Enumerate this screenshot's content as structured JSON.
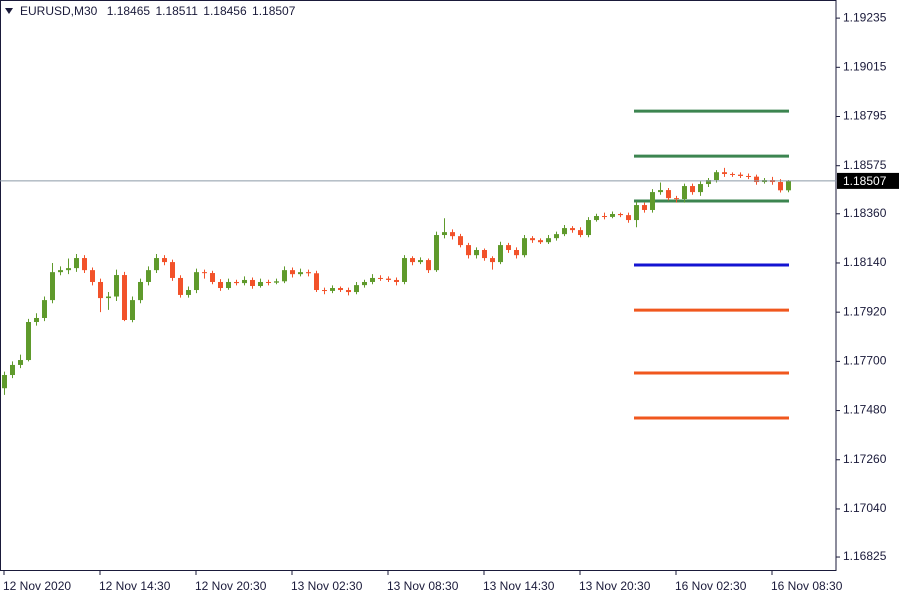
{
  "chart_data": {
    "type": "candlestick",
    "symbol": "EURUSD,M30",
    "categories": [
      "12 Nov 2020",
      null,
      null,
      null,
      null,
      null,
      null,
      null,
      null,
      null,
      null,
      null,
      "12 Nov 14:30",
      null,
      null,
      null,
      null,
      null,
      null,
      null,
      null,
      null,
      null,
      null,
      "12 Nov 20:30",
      null,
      null,
      null,
      null,
      null,
      null,
      null,
      null,
      null,
      null,
      null,
      "13 Nov 02:30",
      null,
      null,
      null,
      null,
      null,
      null,
      null,
      null,
      null,
      null,
      null,
      "13 Nov 08:30",
      null,
      null,
      null,
      null,
      null,
      null,
      null,
      null,
      null,
      null,
      null,
      "13 Nov 14:30",
      null,
      null,
      null,
      null,
      null,
      null,
      null,
      null,
      null,
      null,
      null,
      "13 Nov 20:30",
      null,
      null,
      null,
      null,
      null,
      null,
      null,
      null,
      null,
      null,
      null,
      "16 Nov 02:30",
      null,
      null,
      null,
      null,
      null,
      null,
      null,
      null,
      null,
      null,
      null,
      "16 Nov 08:30",
      null,
      null
    ],
    "open": [
      1.1758,
      1.17639,
      1.17684,
      1.17706,
      1.17876,
      1.17894,
      1.17974,
      1.18099,
      1.18108,
      1.18117,
      1.18162,
      1.18108,
      1.18055,
      1.17983,
      1.1799,
      1.18086,
      1.17885,
      1.17974,
      1.18055,
      1.18108,
      1.18162,
      1.18144,
      1.18073,
      1.17997,
      1.18019,
      1.18099,
      1.18095,
      1.18055,
      1.18028,
      1.18055,
      1.1805,
      1.18064,
      1.18037,
      1.18055,
      1.18052,
      1.18058,
      1.18108,
      1.1809,
      1.18099,
      1.18094,
      1.18019,
      1.18015,
      1.18028,
      1.18019,
      1.1801,
      1.18041,
      1.18055,
      1.18073,
      1.1807,
      1.18064,
      1.18055,
      1.18162,
      1.18144,
      1.18153,
      1.18108,
      1.18265,
      1.18278,
      1.1826,
      1.1822,
      1.18175,
      1.18198,
      1.18162,
      1.18144,
      1.1822,
      1.18198,
      1.18175,
      1.18251,
      1.18242,
      1.18233,
      1.18251,
      1.18269,
      1.18296,
      1.18287,
      1.18265,
      1.18332,
      1.1835,
      1.18346,
      1.18359,
      1.18354,
      1.18332,
      1.18399,
      1.18377,
      1.18457,
      1.18466,
      1.1843,
      1.18426,
      1.18484,
      1.18457,
      1.18493,
      1.18511,
      1.18546,
      1.18538,
      1.18535,
      1.18529,
      1.18526,
      1.18502,
      1.18511,
      1.18502,
      1.18465
    ],
    "high": [
      1.17654,
      1.177,
      1.1773,
      1.1789,
      1.17915,
      1.1799,
      1.1814,
      1.18125,
      1.1816,
      1.1818,
      1.18175,
      1.1812,
      1.1807,
      1.1801,
      1.1811,
      1.181,
      1.1799,
      1.1807,
      1.18125,
      1.1818,
      1.18175,
      1.18155,
      1.18085,
      1.18035,
      1.18115,
      1.1811,
      1.18105,
      1.18068,
      1.1807,
      1.18065,
      1.1808,
      1.18075,
      1.1807,
      1.18065,
      1.1807,
      1.18125,
      1.1812,
      1.18115,
      1.1811,
      1.18105,
      1.1803,
      1.1804,
      1.18035,
      1.1803,
      1.18055,
      1.18065,
      1.1809,
      1.18085,
      1.1808,
      1.18075,
      1.18175,
      1.1817,
      1.18165,
      1.1816,
      1.1828,
      1.1834,
      1.1829,
      1.1827,
      1.1823,
      1.1821,
      1.18205,
      1.1817,
      1.18235,
      1.1823,
      1.1821,
      1.18265,
      1.1826,
      1.1825,
      1.18265,
      1.1828,
      1.1831,
      1.18305,
      1.183,
      1.18345,
      1.1836,
      1.18365,
      1.1837,
      1.18365,
      1.18365,
      1.18415,
      1.1841,
      1.1847,
      1.185,
      1.18475,
      1.1844,
      1.18495,
      1.18495,
      1.18505,
      1.1852,
      1.18555,
      1.18565,
      1.18545,
      1.18545,
      1.1854,
      1.18535,
      1.1852,
      1.18525,
      1.18515,
      1.18511
    ],
    "low": [
      1.1755,
      1.17625,
      1.1767,
      1.177,
      1.1786,
      1.1788,
      1.1796,
      1.18085,
      1.1809,
      1.181,
      1.18095,
      1.1804,
      1.1792,
      1.1793,
      1.1797,
      1.1788,
      1.17875,
      1.1796,
      1.1804,
      1.18095,
      1.1813,
      1.1806,
      1.17985,
      1.17985,
      1.18005,
      1.1807,
      1.18045,
      1.18015,
      1.1802,
      1.1804,
      1.1804,
      1.18025,
      1.1803,
      1.1804,
      1.18045,
      1.1805,
      1.18075,
      1.1808,
      1.1808,
      1.1801,
      1.18,
      1.18005,
      1.1801,
      1.17995,
      1.18,
      1.1803,
      1.18045,
      1.1806,
      1.18055,
      1.1804,
      1.18045,
      1.1813,
      1.18135,
      1.18095,
      1.181,
      1.1825,
      1.18245,
      1.1821,
      1.1816,
      1.1816,
      1.1815,
      1.1811,
      1.18135,
      1.18185,
      1.1816,
      1.18165,
      1.1823,
      1.18225,
      1.18225,
      1.1824,
      1.1826,
      1.18275,
      1.18255,
      1.18255,
      1.18325,
      1.18335,
      1.1834,
      1.18345,
      1.1832,
      1.183,
      1.18365,
      1.18365,
      1.18445,
      1.1842,
      1.1841,
      1.1841,
      1.18445,
      1.1844,
      1.1848,
      1.185,
      1.18525,
      1.18525,
      1.1852,
      1.18515,
      1.1849,
      1.18495,
      1.1849,
      1.18455,
      1.18456
    ],
    "close": [
      1.17639,
      1.17684,
      1.17706,
      1.17876,
      1.17894,
      1.17974,
      1.18099,
      1.18108,
      1.18117,
      1.18162,
      1.18108,
      1.18055,
      1.17983,
      1.1799,
      1.18086,
      1.17885,
      1.17974,
      1.18055,
      1.18108,
      1.18162,
      1.18144,
      1.18073,
      1.17997,
      1.18019,
      1.18099,
      1.18095,
      1.18055,
      1.18028,
      1.18055,
      1.1805,
      1.18064,
      1.18037,
      1.18055,
      1.18052,
      1.18058,
      1.18108,
      1.1809,
      1.18099,
      1.18094,
      1.18019,
      1.18015,
      1.18028,
      1.18019,
      1.1801,
      1.18041,
      1.18055,
      1.18073,
      1.1807,
      1.18064,
      1.18055,
      1.18162,
      1.18144,
      1.18153,
      1.18108,
      1.18265,
      1.18278,
      1.1826,
      1.1822,
      1.18175,
      1.18198,
      1.18162,
      1.18144,
      1.1822,
      1.18198,
      1.18175,
      1.18251,
      1.18242,
      1.18233,
      1.18251,
      1.18269,
      1.18296,
      1.18287,
      1.18265,
      1.18332,
      1.1835,
      1.18346,
      1.18359,
      1.18354,
      1.18332,
      1.18399,
      1.18377,
      1.18457,
      1.18466,
      1.1843,
      1.18426,
      1.18484,
      1.18457,
      1.18493,
      1.18511,
      1.18546,
      1.18538,
      1.18535,
      1.18529,
      1.18526,
      1.18502,
      1.18511,
      1.18502,
      1.18465,
      1.18507
    ],
    "up_color": "#5f9a2c",
    "down_color": "#f2522a",
    "levels": [
      {
        "value": 1.18819,
        "color": "#3c8550"
      },
      {
        "value": 1.18618,
        "color": "#3c8550"
      },
      {
        "value": 1.18417,
        "color": "#3c8550"
      },
      {
        "value": 1.18131,
        "color": "#1414d2"
      },
      {
        "value": 1.17929,
        "color": "#f0571e"
      },
      {
        "value": 1.17648,
        "color": "#f0571e"
      },
      {
        "value": 1.17447,
        "color": "#f0571e"
      }
    ],
    "ylim": [
      1.16767,
      1.19316
    ],
    "yticks": [
      1.19235,
      1.19015,
      1.18795,
      1.18575,
      {
        "value": 1.1836,
        "label": "1.18360"
      },
      {
        "value": 1.1814,
        "label": "1.18140"
      },
      {
        "value": 1.1792,
        "label": "1.17920"
      },
      {
        "value": 1.177,
        "label": "1.17700"
      },
      {
        "value": 1.1748,
        "label": "1.17480"
      },
      {
        "value": 1.1726,
        "label": "1.17260"
      },
      {
        "value": 1.1704,
        "label": "1.17040"
      },
      1.16825
    ],
    "grid": false
  }
}
